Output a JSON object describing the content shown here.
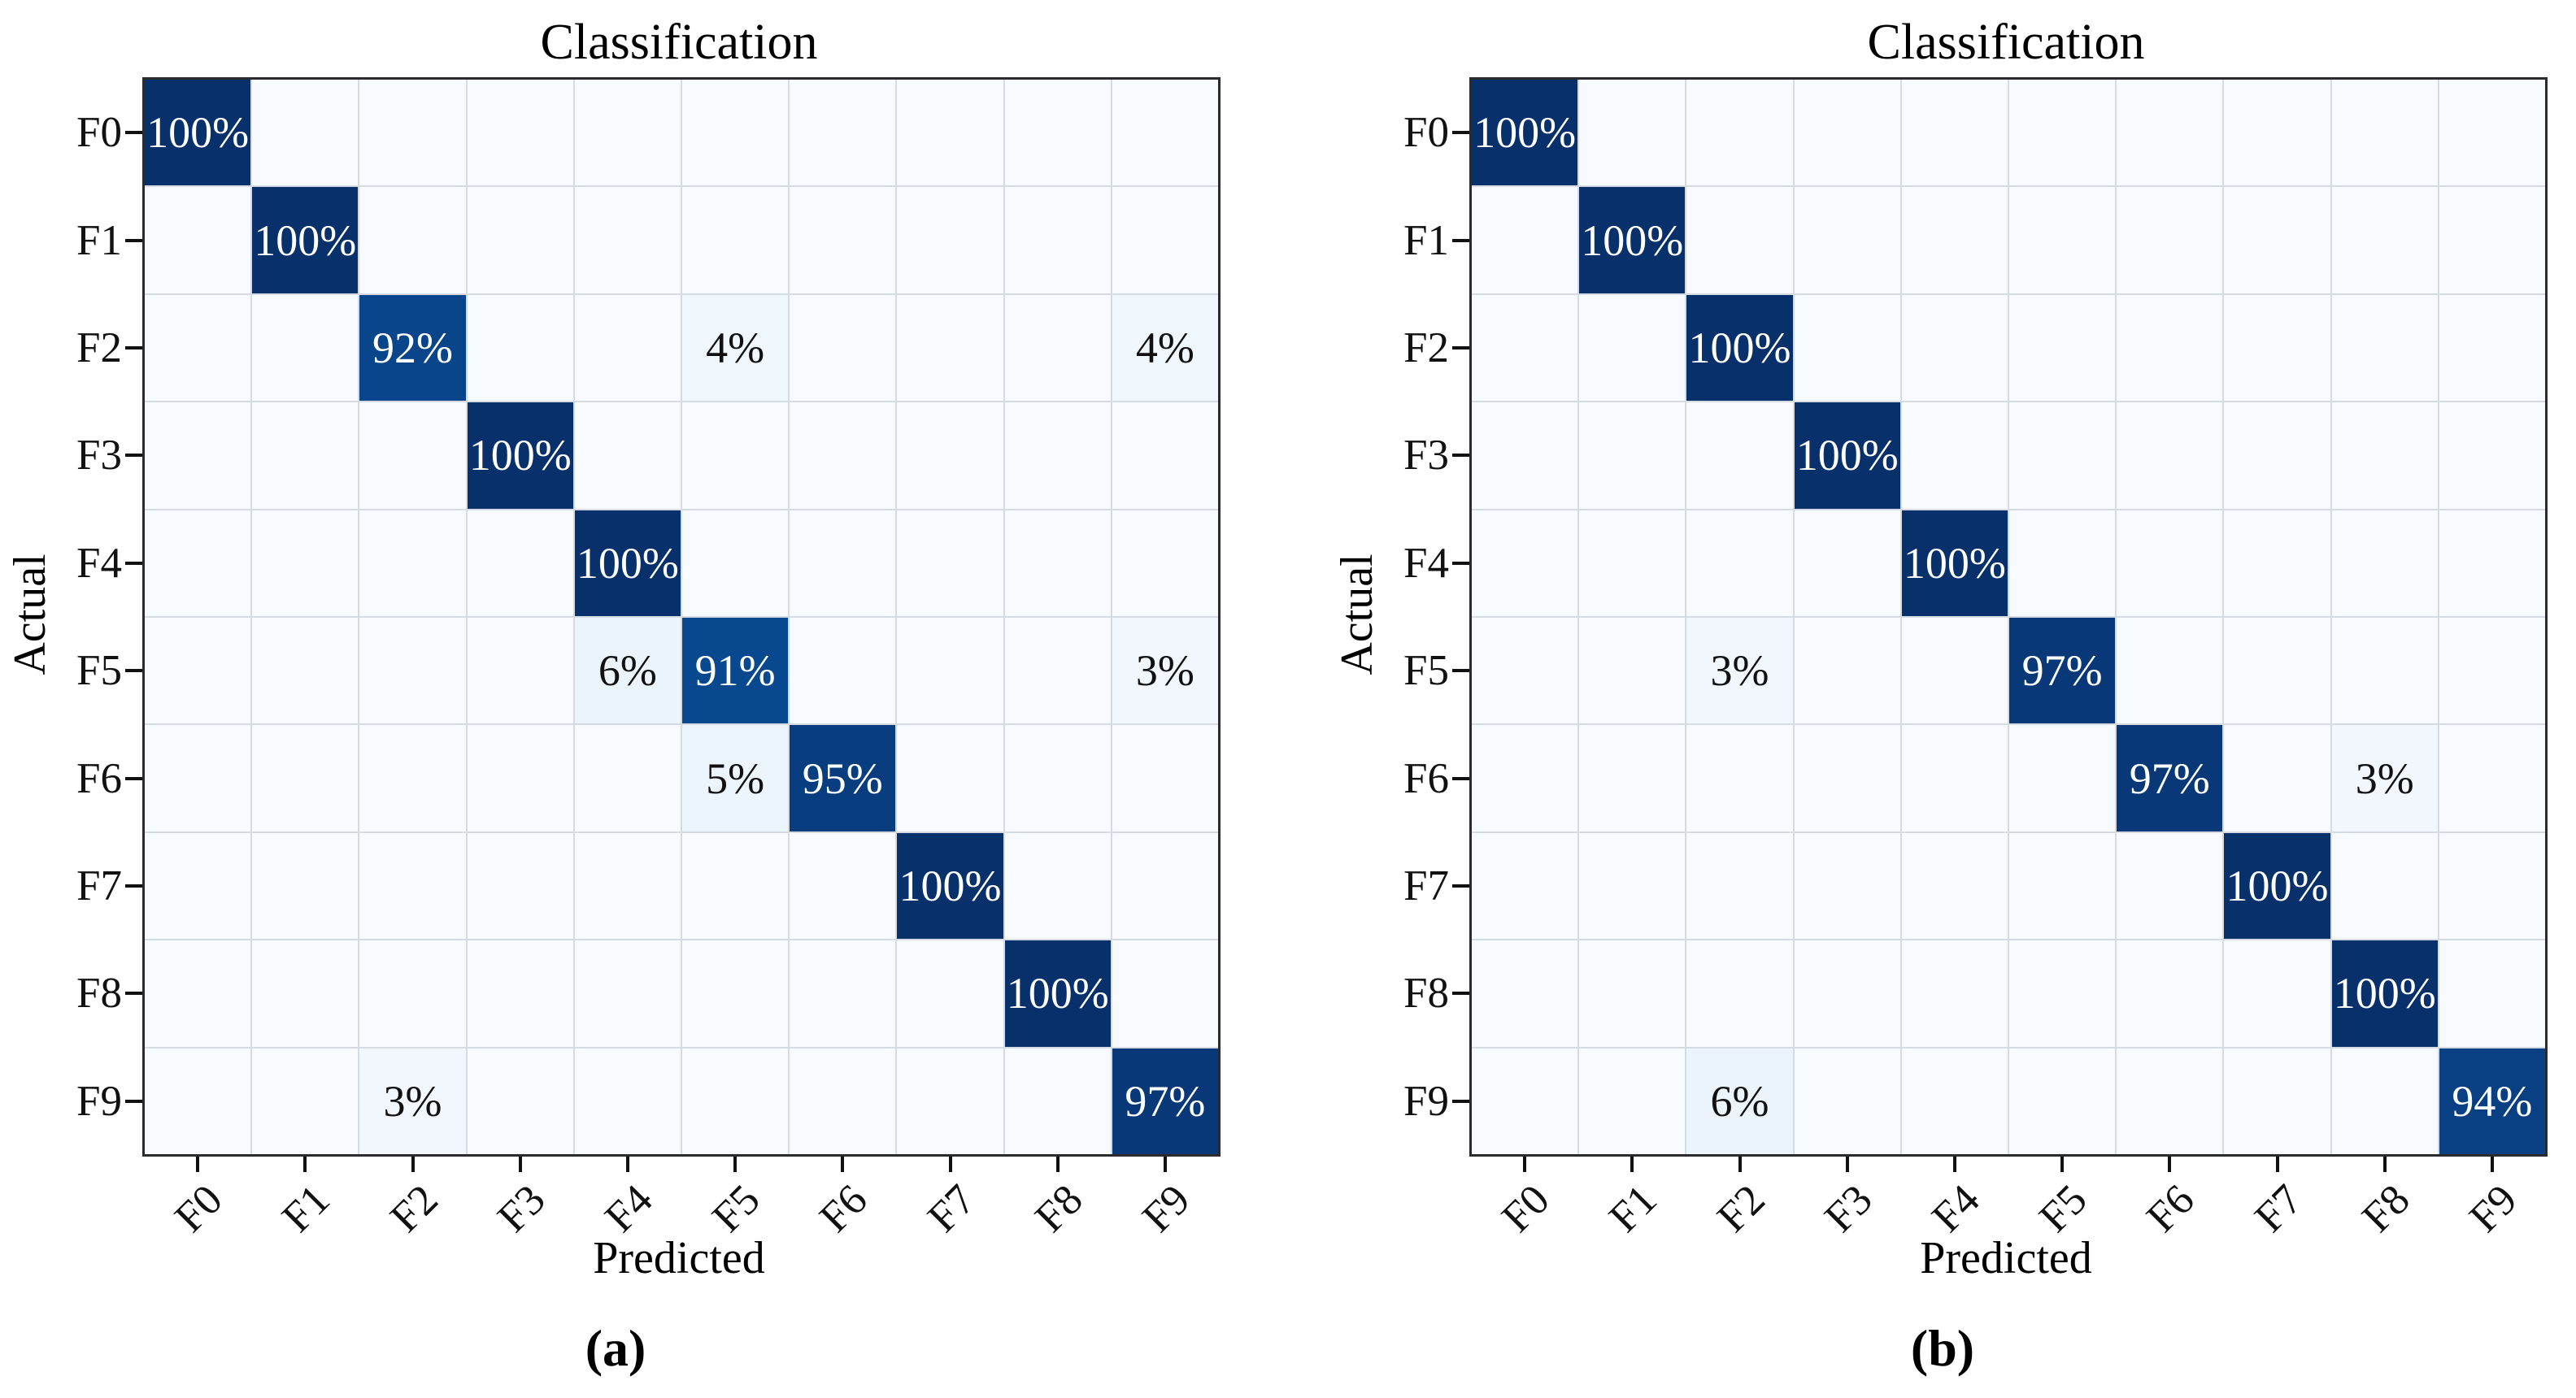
{
  "figure_background": "#ffffff",
  "colors": {
    "colormap": "Blues",
    "diagonal_max": "#08306b",
    "zero_cell": "#f7fbff",
    "gridline": "#d4dbe3",
    "matrix_border": "#2b2b2e",
    "cell_text_on_dark": "#ffffff",
    "cell_text_on_light": "#111111",
    "tick_mark": "#111111"
  },
  "chart_data": [
    {
      "type": "heatmap",
      "panel_label": "(a)",
      "title": "Classification",
      "xlabel": "Predicted",
      "ylabel": "Actual",
      "x_categories": [
        "F0",
        "F1",
        "F2",
        "F3",
        "F4",
        "F5",
        "F6",
        "F7",
        "F8",
        "F9"
      ],
      "y_categories": [
        "F0",
        "F1",
        "F2",
        "F3",
        "F4",
        "F5",
        "F6",
        "F7",
        "F8",
        "F9"
      ],
      "value_suffix": "%",
      "value_range": [
        0,
        100
      ],
      "zero_cells_blank": true,
      "grid": true,
      "values_percent": [
        [
          100,
          0,
          0,
          0,
          0,
          0,
          0,
          0,
          0,
          0
        ],
        [
          0,
          100,
          0,
          0,
          0,
          0,
          0,
          0,
          0,
          0
        ],
        [
          0,
          0,
          92,
          0,
          0,
          4,
          0,
          0,
          0,
          4
        ],
        [
          0,
          0,
          0,
          100,
          0,
          0,
          0,
          0,
          0,
          0
        ],
        [
          0,
          0,
          0,
          0,
          100,
          0,
          0,
          0,
          0,
          0
        ],
        [
          0,
          0,
          0,
          0,
          6,
          91,
          0,
          0,
          0,
          3
        ],
        [
          0,
          0,
          0,
          0,
          0,
          5,
          95,
          0,
          0,
          0
        ],
        [
          0,
          0,
          0,
          0,
          0,
          0,
          0,
          100,
          0,
          0
        ],
        [
          0,
          0,
          0,
          0,
          0,
          0,
          0,
          0,
          100,
          0
        ],
        [
          0,
          0,
          3,
          0,
          0,
          0,
          0,
          0,
          0,
          97
        ]
      ]
    },
    {
      "type": "heatmap",
      "panel_label": "(b)",
      "title": "Classification",
      "xlabel": "Predicted",
      "ylabel": "Actual",
      "x_categories": [
        "F0",
        "F1",
        "F2",
        "F3",
        "F4",
        "F5",
        "F6",
        "F7",
        "F8",
        "F9"
      ],
      "y_categories": [
        "F0",
        "F1",
        "F2",
        "F3",
        "F4",
        "F5",
        "F6",
        "F7",
        "F8",
        "F9"
      ],
      "value_suffix": "%",
      "value_range": [
        0,
        100
      ],
      "zero_cells_blank": true,
      "grid": true,
      "values_percent": [
        [
          100,
          0,
          0,
          0,
          0,
          0,
          0,
          0,
          0,
          0
        ],
        [
          0,
          100,
          0,
          0,
          0,
          0,
          0,
          0,
          0,
          0
        ],
        [
          0,
          0,
          100,
          0,
          0,
          0,
          0,
          0,
          0,
          0
        ],
        [
          0,
          0,
          0,
          100,
          0,
          0,
          0,
          0,
          0,
          0
        ],
        [
          0,
          0,
          0,
          0,
          100,
          0,
          0,
          0,
          0,
          0
        ],
        [
          0,
          0,
          3,
          0,
          0,
          97,
          0,
          0,
          0,
          0
        ],
        [
          0,
          0,
          0,
          0,
          0,
          0,
          97,
          0,
          3,
          0
        ],
        [
          0,
          0,
          0,
          0,
          0,
          0,
          0,
          100,
          0,
          0
        ],
        [
          0,
          0,
          0,
          0,
          0,
          0,
          0,
          0,
          100,
          0
        ],
        [
          0,
          0,
          6,
          0,
          0,
          0,
          0,
          0,
          0,
          94
        ]
      ]
    }
  ]
}
